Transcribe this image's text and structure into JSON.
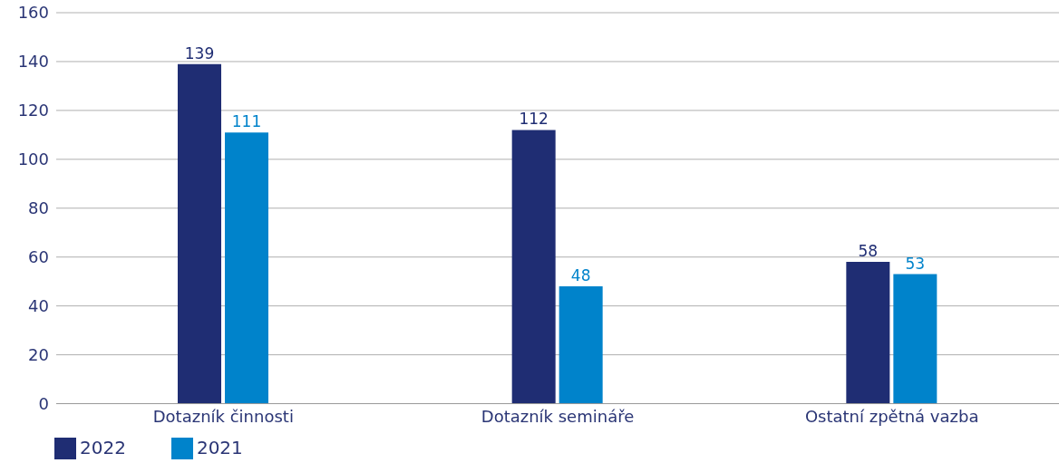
{
  "chart_data": {
    "type": "bar",
    "categories": [
      "Dotazník činnosti",
      "Dotazník semináře",
      "Ostatní zpětná vazba"
    ],
    "series": [
      {
        "name": "2022",
        "color": "#1f2d73",
        "values": [
          139,
          112,
          58
        ]
      },
      {
        "name": "2021",
        "color": "#0083cb",
        "values": [
          111,
          48,
          53
        ]
      }
    ],
    "ylim": [
      0,
      160
    ],
    "yticks": [
      0,
      20,
      40,
      60,
      80,
      100,
      120,
      140,
      160
    ],
    "grid": "y",
    "legend": "bottom left",
    "data_labels": true
  }
}
